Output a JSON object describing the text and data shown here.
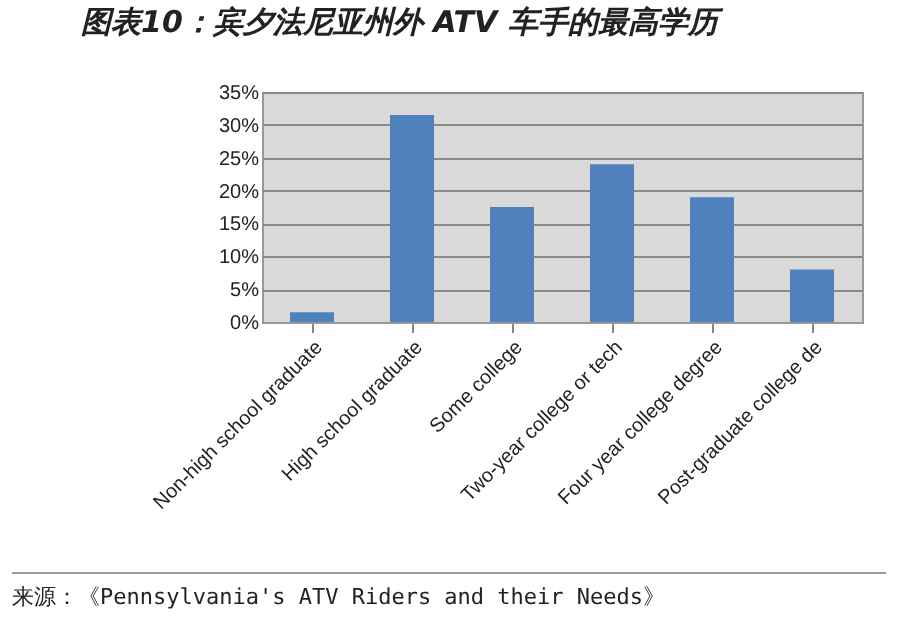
{
  "chart_data": {
    "type": "bar",
    "title": "图表10：宾夕法尼亚州外 ATV 车手的最高学历",
    "categories": [
      "Non-high school graduate",
      "High school graduate",
      "Some college",
      "Two-year college or tech",
      "Four year college degree",
      "Post-graduate college de"
    ],
    "values": [
      0.015,
      0.315,
      0.175,
      0.24,
      0.19,
      0.08
    ],
    "color": "#4f81bd",
    "ylim": [
      0,
      0.35
    ],
    "yticks": [
      {
        "value": 0,
        "label": "0%"
      },
      {
        "value": 0.05,
        "label": "5%"
      },
      {
        "value": 0.1,
        "label": "10%"
      },
      {
        "value": 0.15,
        "label": "15%"
      },
      {
        "value": 0.2,
        "label": "20%"
      },
      {
        "value": 0.25,
        "label": "25%"
      },
      {
        "value": 0.3,
        "label": "30%"
      },
      {
        "value": 0.35,
        "label": "35%"
      }
    ],
    "grid": true,
    "annotations": [
      "来源：《Pennsylvania's ATV Riders and their Needs》"
    ]
  }
}
